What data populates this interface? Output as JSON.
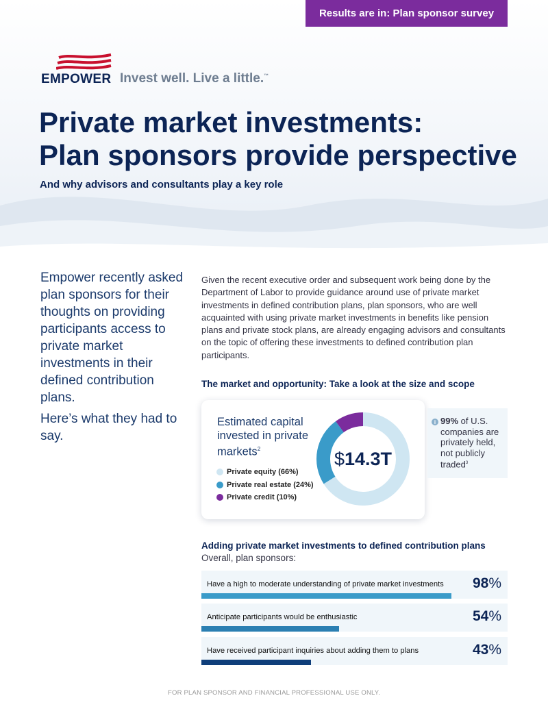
{
  "badge": "Results are in: Plan sponsor survey",
  "logo": {
    "wordmark": "EMPOWER",
    "tagline": "Invest well. Live a little.",
    "trademark": "™"
  },
  "title_line1": "Private market investments:",
  "title_line2": "Plan sponsors provide perspective",
  "subtitle": "And why advisors and consultants play a key role",
  "intro": {
    "p1": "Empower recently asked plan sponsors for their thoughts on providing participants access to private market investments in their defined contribution plans.",
    "p2": "Here’s what they had to say."
  },
  "body": "Given the recent executive order and subsequent work being done by the Department of Labor to provide guidance around use of private market investments in defined contribution plans, plan sponsors, who are well acquainted with using private market investments in benefits like pension plans and private stock plans, are already engaging advisors and consultants on the topic of offering these investments to defined contribution plan participants.",
  "market": {
    "heading": "The market and opportunity: Take a look at the size and scope",
    "card_title": "Estimated capital invested in private markets",
    "card_title_sup": "2",
    "total_currency": "$",
    "total_amount": "14.3T",
    "legend": [
      {
        "label": "Private equity (66%)",
        "value": 66,
        "color": "#cfe6f2"
      },
      {
        "label": "Private real estate (24%)",
        "value": 24,
        "color": "#3a9bc9"
      },
      {
        "label": "Private credit (10%)",
        "value": 10,
        "color": "#7b2c9d"
      }
    ]
  },
  "stat": {
    "icon": "info-icon",
    "highlight": "99%",
    "text": "of U.S. companies are privately held, not publicly traded",
    "sup": "3"
  },
  "dc": {
    "heading": "Adding private market investments to defined contribution plans",
    "overall": "Overall, plan sponsors:",
    "bars": [
      {
        "label": "Have a high to moderate understanding of private market investments",
        "value": 98,
        "color": "#3a9bc9"
      },
      {
        "label": "Anticipate participants would be enthusiastic",
        "value": 54,
        "color": "#2b7fb2"
      },
      {
        "label": "Have received participant inquiries about adding them to plans",
        "value": 43,
        "color": "#0f3e7a"
      }
    ],
    "percent_sign": "%"
  },
  "footer": "FOR PLAN SPONSOR AND FINANCIAL PROFESSIONAL USE ONLY.",
  "colors": {
    "navy": "#0c2455",
    "purple": "#7b2c9d",
    "teal": "#3a9bc9"
  }
}
